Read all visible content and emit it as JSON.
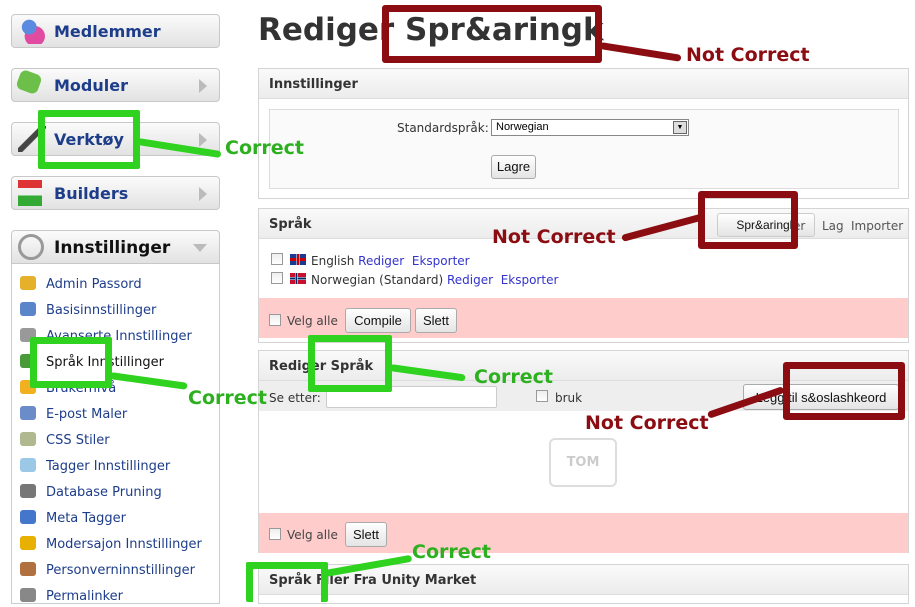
{
  "sidebar": {
    "menus": [
      {
        "label": "Medlemmer",
        "icon": "members-icon"
      },
      {
        "label": "Moduler",
        "icon": "puzzle-icon"
      },
      {
        "label": "Verktøy",
        "icon": "tools-icon"
      },
      {
        "label": "Builders",
        "icon": "builders-icon"
      },
      {
        "label": "Innstillinger",
        "icon": "gear-icon"
      }
    ],
    "items": [
      {
        "label": "Admin Passord",
        "icon": "key-icon"
      },
      {
        "label": "Basisinnstillinger",
        "icon": "wrench-icon"
      },
      {
        "label": "Avanserte Innstillinger",
        "icon": "gears-icon"
      },
      {
        "label": "Språk Innstillinger",
        "icon": "globe-icon"
      },
      {
        "label": "Brukernivå",
        "icon": "star-icon"
      },
      {
        "label": "E-post Maler",
        "icon": "mail-icon"
      },
      {
        "label": "CSS Stiler",
        "icon": "css-icon"
      },
      {
        "label": "Tagger Innstillinger",
        "icon": "tag-icon"
      },
      {
        "label": "Database Pruning",
        "icon": "database-icon"
      },
      {
        "label": "Meta Tagger",
        "icon": "code-icon"
      },
      {
        "label": "Modersajon Innstillinger",
        "icon": "warning-icon"
      },
      {
        "label": "Personverninnstillinger",
        "icon": "users-icon"
      },
      {
        "label": "Permalinker",
        "icon": "link-icon"
      }
    ]
  },
  "main": {
    "title_prefix": "Rediger",
    "title_highlight": "Spr&aringk",
    "settings": {
      "header": "Innstillinger",
      "label": "Standardspråk:",
      "select_value": "Norwegian",
      "save": "Lagre"
    },
    "languages": {
      "header": "Språk",
      "tabs": [
        "Spr&aringk",
        "er",
        "Lag",
        "Importer"
      ],
      "rows": [
        {
          "name": "English",
          "edit": "Rediger",
          "export": "Eksporter"
        },
        {
          "name": "Norwegian (Standard)",
          "edit": "Rediger",
          "export": "Eksporter"
        }
      ],
      "select_all": "Velg alle",
      "compile": "Compile",
      "delete": "Slett"
    },
    "edit": {
      "header": "Rediger Språk",
      "search_label": "Se etter:",
      "search_value": "",
      "use_label": "bruk",
      "add_btn_prefix": "Legg til",
      "add_btn_highlight": "s&oslashkeord",
      "empty": "TOM",
      "select_all": "Velg alle",
      "delete": "Slett"
    },
    "market": {
      "header": "Språk Filer Fra Unity Market"
    }
  },
  "annotations": {
    "correct": "Correct",
    "not_correct": "Not Correct"
  },
  "colors": {
    "correct": "#2fd21f",
    "not_correct": "#8b0d12",
    "link": "#3333cc",
    "alert_bg": "#ffcccc"
  }
}
